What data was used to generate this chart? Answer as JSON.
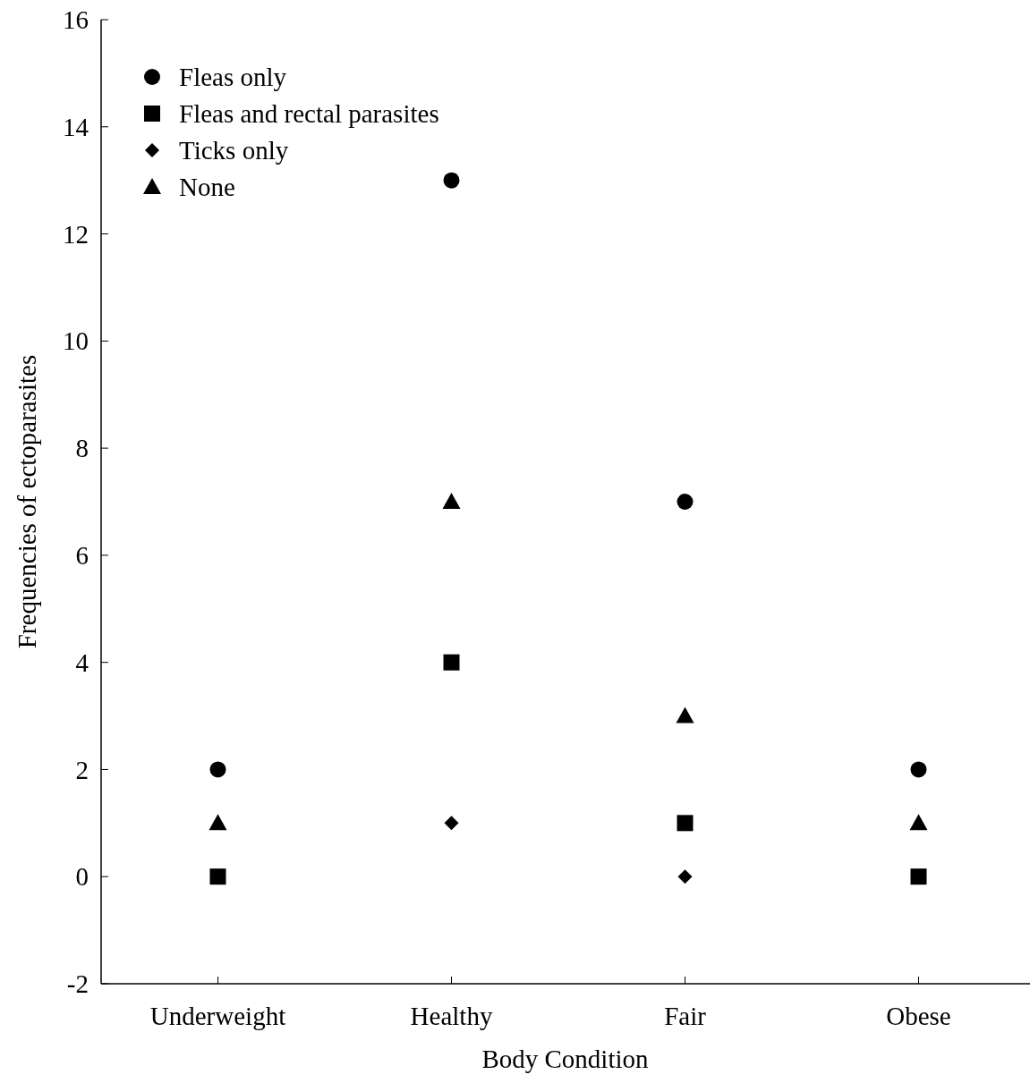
{
  "chart_data": {
    "type": "scatter",
    "xlabel": "Body Condition",
    "ylabel": "Frequencies of ectoparasites",
    "categories": [
      "Underweight",
      "Healthy",
      "Fair",
      "Obese"
    ],
    "ylim": [
      -2,
      16
    ],
    "yticks": [
      -2,
      0,
      2,
      4,
      6,
      8,
      10,
      12,
      14,
      16
    ],
    "grid": false,
    "legend": "top left",
    "series": [
      {
        "name": "Fleas only",
        "color": "#000000",
        "marker": "circle",
        "values": [
          2,
          13,
          7,
          2
        ]
      },
      {
        "name": "Fleas and rectal parasites",
        "color": "#000000",
        "marker": "square",
        "values": [
          0,
          4,
          1,
          0
        ]
      },
      {
        "name": "Ticks only",
        "color": "#000000",
        "marker": "diamond",
        "values": [
          null,
          1,
          0,
          null
        ]
      },
      {
        "name": "None",
        "color": "#000000",
        "marker": "triangle",
        "values": [
          1,
          7,
          3,
          1
        ]
      }
    ]
  }
}
